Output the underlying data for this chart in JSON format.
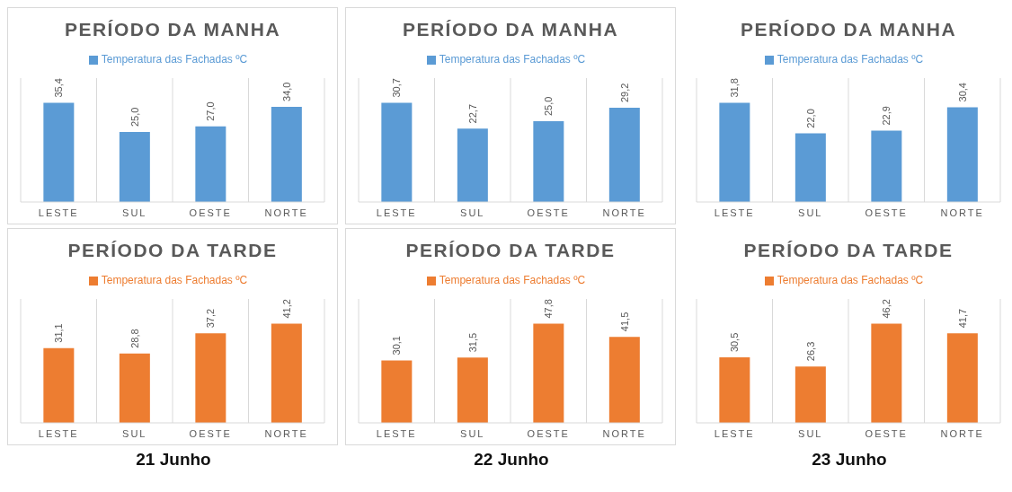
{
  "chart_data": [
    {
      "type": "bar",
      "title": "PERÍODO DA MANHA",
      "categories": [
        "LESTE",
        "SUL",
        "OESTE",
        "NORTE"
      ],
      "series": [
        {
          "name": "Temperatura das Fachadas ºC",
          "color": "#5b9bd5",
          "values": [
            35.4,
            25.0,
            27.0,
            34.0
          ],
          "value_labels": [
            "35,4",
            "25,0",
            "27,0",
            "34,0"
          ]
        }
      ],
      "legend": "top",
      "grid": "x"
    },
    {
      "type": "bar",
      "title": "PERÍODO DA MANHA",
      "categories": [
        "LESTE",
        "SUL",
        "OESTE",
        "NORTE"
      ],
      "series": [
        {
          "name": "Temperatura das Fachadas ºC",
          "color": "#5b9bd5",
          "values": [
            30.7,
            22.7,
            25.0,
            29.2
          ],
          "value_labels": [
            "30,7",
            "22,7",
            "25,0",
            "29,2"
          ]
        }
      ],
      "legend": "top",
      "grid": "x"
    },
    {
      "type": "bar",
      "title": "PERÍODO DA MANHA",
      "categories": [
        "LESTE",
        "SUL",
        "OESTE",
        "NORTE"
      ],
      "series": [
        {
          "name": "Temperatura das Fachadas ºC",
          "color": "#5b9bd5",
          "values": [
            31.8,
            22.0,
            22.9,
            30.4
          ],
          "value_labels": [
            "31,8",
            "22,0",
            "22,9",
            "30,4"
          ]
        }
      ],
      "legend": "top",
      "grid": "x"
    },
    {
      "type": "bar",
      "title": "PERÍODO DA TARDE",
      "categories": [
        "LESTE",
        "SUL",
        "OESTE",
        "NORTE"
      ],
      "series": [
        {
          "name": "Temperatura das Fachadas ºC",
          "color": "#ed7d31",
          "values": [
            31.1,
            28.8,
            37.2,
            41.2
          ],
          "value_labels": [
            "31,1",
            "28,8",
            "37,2",
            "41,2"
          ]
        }
      ],
      "legend": "top",
      "grid": "x",
      "annotations": [
        "21 Junho"
      ]
    },
    {
      "type": "bar",
      "title": "PERÍODO DA TARDE",
      "categories": [
        "LESTE",
        "SUL",
        "OESTE",
        "NORTE"
      ],
      "series": [
        {
          "name": "Temperatura das Fachadas ºC",
          "color": "#ed7d31",
          "values": [
            30.1,
            31.5,
            47.8,
            41.5
          ],
          "value_labels": [
            "30,1",
            "31,5",
            "47,8",
            "41,5"
          ]
        }
      ],
      "legend": "top",
      "grid": "x",
      "annotations": [
        "22 Junho"
      ]
    },
    {
      "type": "bar",
      "title": "PERÍODO DA TARDE",
      "categories": [
        "LESTE",
        "SUL",
        "OESTE",
        "NORTE"
      ],
      "series": [
        {
          "name": "Temperatura das Fachadas ºC",
          "color": "#ed7d31",
          "values": [
            30.5,
            26.3,
            46.2,
            41.7
          ],
          "value_labels": [
            "30,5",
            "26,3",
            "46,2",
            "41,7"
          ]
        }
      ],
      "legend": "top",
      "grid": "x",
      "annotations": [
        "23 Junho"
      ]
    }
  ]
}
